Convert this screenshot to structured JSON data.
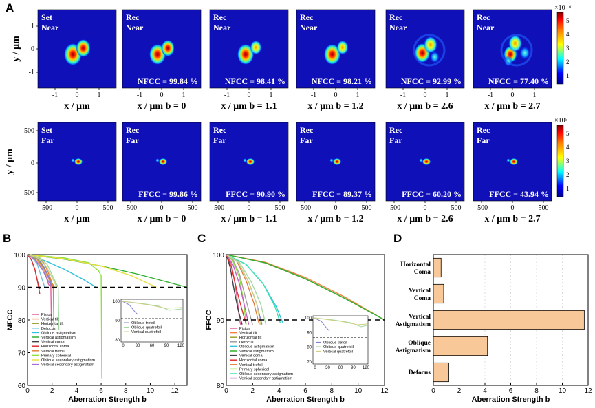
{
  "panel_labels": [
    "A",
    "B",
    "C",
    "D"
  ],
  "panel_a": {
    "near_row": {
      "y_axis_label": "y / μm",
      "y_ticks": [
        "1",
        "0",
        "-1"
      ],
      "x_ticks": [
        "-1",
        "0",
        "1"
      ],
      "colorbar_exponent": "×10⁻⁶",
      "colorbar_ticks": [
        "5",
        "4",
        "3",
        "2",
        "1"
      ],
      "tiles": [
        {
          "line1": "Set",
          "line2": "Near",
          "metric": "",
          "xlabel": "x / μm"
        },
        {
          "line1": "Rec",
          "line2": "Near",
          "metric": "NFCC = 99.84 %",
          "xlabel": "x / μm  b = 0"
        },
        {
          "line1": "Rec",
          "line2": "Near",
          "metric": "NFCC = 98.41 %",
          "xlabel": "x / μm  b = 1.1"
        },
        {
          "line1": "Rec",
          "line2": "Near",
          "metric": "NFCC = 98.21 %",
          "xlabel": "x / μm  b = 1.2"
        },
        {
          "line1": "Rec",
          "line2": "Near",
          "metric": "NFCC = 92.99 %",
          "xlabel": "x / μm  b = 2.6"
        },
        {
          "line1": "Rec",
          "line2": "Near",
          "metric": "NFCC = 77.40 %",
          "xlabel": "x / μm  b = 2.7"
        }
      ]
    },
    "far_row": {
      "y_axis_label": "y / μm",
      "y_ticks": [
        "500",
        "0",
        "-500"
      ],
      "x_ticks": [
        "-500",
        "0",
        "500"
      ],
      "colorbar_exponent": "×10⁵",
      "colorbar_ticks": [
        "5",
        "4",
        "3",
        "2",
        "1"
      ],
      "tiles": [
        {
          "line1": "Set",
          "line2": "Far",
          "metric": "",
          "xlabel": "x / μm"
        },
        {
          "line1": "Rec",
          "line2": "Far",
          "metric": "FFCC = 99.86 %",
          "xlabel": "x / μm  b = 0"
        },
        {
          "line1": "Rec",
          "line2": "Far",
          "metric": "FFCC =  90.90 %",
          "xlabel": "x / μm  b = 1.1"
        },
        {
          "line1": "Rec",
          "line2": "Far",
          "metric": "FFCC =  89.37 %",
          "xlabel": "x / μm  b = 1.2"
        },
        {
          "line1": "Rec",
          "line2": "Far",
          "metric": "FFCC = 60.20 %",
          "xlabel": "x / μm  b = 2.6"
        },
        {
          "line1": "Rec",
          "line2": "Far",
          "metric": "FFCC = 43.94 %",
          "xlabel": "x / μm  b = 2.7"
        }
      ]
    }
  },
  "chart_data": [
    {
      "panel": "B",
      "type": "line",
      "xlabel": "Aberration Strength b",
      "ylabel": "NFCC",
      "xlim": [
        0,
        13
      ],
      "ylim": [
        60,
        100
      ],
      "xticks": [
        "0",
        "2",
        "4",
        "6",
        "8",
        "10",
        "12"
      ],
      "yticks": [
        "100",
        "90",
        "80",
        "70",
        "60"
      ],
      "threshold": 90,
      "series": [
        {
          "name": "Piston",
          "color": "#e0609a",
          "x": [
            0,
            0.6,
            1.0,
            1.3,
            1.5,
            1.7,
            1.9,
            1.95
          ],
          "y": [
            100,
            99.2,
            98.0,
            96.0,
            93.5,
            91.0,
            90.0,
            78
          ]
        },
        {
          "name": "Vertical tilt",
          "color": "#f2a060",
          "x": [
            0,
            0.8,
            1.4,
            1.8,
            2.1
          ],
          "y": [
            100,
            98.0,
            95.0,
            92.0,
            89.5
          ]
        },
        {
          "name": "Horizontal tilt",
          "color": "#a0a030",
          "x": [
            0,
            0.8,
            1.4,
            1.8,
            2.2
          ],
          "y": [
            100,
            98.5,
            95.5,
            92.5,
            90.0
          ]
        },
        {
          "name": "Defocus",
          "color": "#70c0e0",
          "x": [
            0,
            0.4,
            0.8,
            1.1,
            1.4
          ],
          "y": [
            100,
            99.0,
            97.0,
            93.5,
            90.0
          ]
        },
        {
          "name": "Oblique astigmatism",
          "color": "#30c0e0",
          "x": [
            0,
            1.5,
            3.0,
            4.5,
            5.6
          ],
          "y": [
            100,
            98.0,
            95.5,
            92.5,
            90.0
          ]
        },
        {
          "name": "Vertical astigmatism",
          "color": "#30b030",
          "x": [
            0,
            3,
            6,
            9,
            11,
            13
          ],
          "y": [
            100,
            98.6,
            96.5,
            94.0,
            92.0,
            90.0
          ]
        },
        {
          "name": "Vertical coma",
          "color": "#404040",
          "x": [
            0,
            0.3,
            0.6,
            0.8,
            1.0
          ],
          "y": [
            100,
            98.5,
            95.5,
            92.0,
            89.5
          ]
        },
        {
          "name": "Horizontal coma",
          "color": "#e03030",
          "x": [
            0,
            0.3,
            0.6,
            0.8,
            0.9,
            1.0
          ],
          "y": [
            100,
            98.5,
            95.5,
            92.0,
            90.0,
            88
          ]
        },
        {
          "name": "Vertical trefoil",
          "color": "#e08040",
          "x": [
            0,
            1,
            1.4,
            1.8,
            2.1,
            2.15
          ],
          "y": [
            100,
            99.0,
            97.0,
            93.5,
            90.0,
            77
          ]
        },
        {
          "name": "Primary spherical",
          "color": "#90e040",
          "x": [
            0,
            3,
            5,
            5.8,
            6.0,
            6.05
          ],
          "y": [
            100,
            99.0,
            97.5,
            95.0,
            93.5,
            62
          ]
        },
        {
          "name": "Oblique secondary astigmatism",
          "color": "#e8e040",
          "x": [
            0,
            3,
            6,
            8.5,
            10.5
          ],
          "y": [
            100,
            98.7,
            96.5,
            93.5,
            90.0
          ]
        },
        {
          "name": "Vertical secondary astigmatism",
          "color": "#a070d0",
          "x": [
            0,
            0.6,
            1.2,
            1.6,
            2.0
          ],
          "y": [
            100,
            98.5,
            95.5,
            92.5,
            90.0
          ]
        },
        {
          "name": "Oblique trefoil",
          "color": "#8080d0",
          "x": [
            0,
            0.8,
            1.3,
            1.7,
            2.0
          ],
          "y": [
            100,
            99.0,
            96.5,
            93.5,
            90.0
          ]
        },
        {
          "name": "Oblique quatrefoil",
          "color": "#a0d8a0",
          "x": [
            0,
            1,
            1.6,
            2.1,
            2.5,
            2.55
          ],
          "y": [
            100,
            99.0,
            97.0,
            93.0,
            90.0,
            77
          ]
        },
        {
          "name": "Vertical quatrefoil",
          "color": "#d0d080",
          "x": [
            0,
            0.8,
            1.5,
            2.0,
            2.4
          ],
          "y": [
            100,
            99.0,
            96.5,
            93.0,
            90.0
          ]
        }
      ],
      "legend_labels": [
        "Piston",
        "Vertical tilt",
        "Horizontal tilt",
        "Defocus",
        "Oblique astigmatism",
        "Vertical astigmatism",
        "Vertical coma",
        "Horizontal coma",
        "Vertical trefoil",
        "Primary spherical",
        "Oblique secondary astigmatism",
        "Vertical secondary astigmatism"
      ],
      "inset": {
        "yticks": [
          "100",
          "90",
          "80"
        ],
        "xticks": [
          "0",
          "30",
          "60",
          "90",
          "120"
        ],
        "legend_labels": [
          "Oblique trefoil",
          "Oblique quatrefoil",
          "Vertical quatrefoil"
        ]
      }
    },
    {
      "panel": "C",
      "type": "line",
      "xlabel": "Aberration Strength b",
      "ylabel": "FFCC",
      "xlim": [
        0,
        12
      ],
      "ylim": [
        80,
        100
      ],
      "xticks": [
        "0",
        "2",
        "4",
        "6",
        "8",
        "10",
        "12"
      ],
      "yticks": [
        "100",
        "90",
        "80"
      ],
      "threshold": 90,
      "series": [
        {
          "name": "Piston",
          "color": "#e0609a",
          "x": [
            0,
            0.4,
            0.7,
            0.9,
            1.0,
            1.1
          ],
          "y": [
            100,
            98.5,
            95.0,
            92.0,
            90.0,
            89.2
          ]
        },
        {
          "name": "Vertical tilt",
          "color": "#f28040",
          "x": [
            0,
            3,
            6,
            9,
            12
          ],
          "y": [
            100,
            98.8,
            96.5,
            93.5,
            90.0
          ]
        },
        {
          "name": "Horizontal tilt",
          "color": "#a0a030",
          "x": [
            0,
            3,
            6,
            9,
            12
          ],
          "y": [
            100,
            98.7,
            96.3,
            93.3,
            90.0
          ]
        },
        {
          "name": "Defocus",
          "color": "#a0a0a0",
          "x": [
            0,
            0.5,
            1.0,
            1.5,
            1.9,
            2.0
          ],
          "y": [
            100,
            99.2,
            97.0,
            93.0,
            90.0,
            89.2
          ]
        },
        {
          "name": "Oblique astigmatism",
          "color": "#30c0e0",
          "x": [
            0,
            1.5,
            2.8,
            3.8,
            4.3
          ],
          "y": [
            100,
            98.5,
            95.5,
            92.0,
            89.5
          ]
        },
        {
          "name": "Vertical astigmatism",
          "color": "#30b030",
          "x": [
            0,
            3,
            6,
            9,
            12
          ],
          "y": [
            100,
            98.7,
            96.3,
            93.3,
            90.0
          ]
        },
        {
          "name": "Vertical coma",
          "color": "#404040",
          "x": [
            0,
            0.3,
            0.6,
            0.9,
            1.2
          ],
          "y": [
            100,
            98.0,
            94.5,
            91.5,
            89.3
          ]
        },
        {
          "name": "Horizontal coma",
          "color": "#e03030",
          "x": [
            0,
            0.4,
            0.8,
            1.2,
            1.5
          ],
          "y": [
            100,
            98.0,
            94.5,
            91.5,
            89.3
          ]
        },
        {
          "name": "Vertical trefoil",
          "color": "#e08040",
          "x": [
            0,
            0.8,
            1.5,
            2.1,
            2.5
          ],
          "y": [
            100,
            99.0,
            96.0,
            92.5,
            89.3
          ]
        },
        {
          "name": "Primary spherical",
          "color": "#90e040",
          "x": [
            0,
            0.5,
            1.0,
            1.3,
            1.5
          ],
          "y": [
            100,
            99.0,
            96.5,
            93.0,
            89.3
          ]
        },
        {
          "name": "Oblique secondary astigmatism",
          "color": "#40e0b0",
          "x": [
            0,
            1.5,
            2.8,
            3.7,
            4.1
          ],
          "y": [
            100,
            98.5,
            95.5,
            92.0,
            89.5
          ]
        },
        {
          "name": "Vertical secondary astigmatism",
          "color": "#c060c0",
          "x": [
            0,
            0.5,
            1.0,
            1.4,
            1.7
          ],
          "y": [
            100,
            98.5,
            95.5,
            92.0,
            89.3
          ]
        },
        {
          "name": "Oblique trefoil",
          "color": "#8080d0",
          "x": [
            0,
            0.9,
            1.7,
            2.3,
            2.7
          ],
          "y": [
            100,
            98.8,
            95.8,
            92.5,
            89.3
          ]
        },
        {
          "name": "Oblique quatrefoil",
          "color": "#a0d8a0",
          "x": [
            0,
            1,
            1.9,
            2.6,
            3.0
          ],
          "y": [
            100,
            98.8,
            95.8,
            92.5,
            89.3
          ]
        },
        {
          "name": "Vertical quatrefoil",
          "color": "#d0d080",
          "x": [
            0,
            0.9,
            1.7,
            2.3,
            2.6
          ],
          "y": [
            100,
            98.8,
            95.8,
            92.5,
            89.3
          ]
        }
      ],
      "legend_labels": [
        "Piston",
        "Vertical tilt",
        "Horizontal tilt",
        "Defocus",
        "Oblique astigmatism",
        "Vertical astigmatism",
        "Vertical coma",
        "Horizontal coma",
        "Vertical trefoil",
        "Primary spherical",
        "Oblique secondary astigmatism",
        "Vertical secondary astigmatism"
      ],
      "inset": {
        "yticks": [
          "100",
          "90",
          "80",
          "70"
        ],
        "xticks": [
          "0",
          "30",
          "60",
          "90",
          "120"
        ],
        "legend_labels": [
          "Oblique trefoil",
          "Oblique quatrefoil",
          "Vertical quatrefoil"
        ]
      }
    },
    {
      "panel": "D",
      "type": "bar",
      "orientation": "horizontal",
      "xlabel": "Aberration Strength b",
      "xlim": [
        0,
        12
      ],
      "xticks": [
        "0",
        "2",
        "4",
        "6",
        "8",
        "10",
        "12"
      ],
      "categories": [
        "Horizontal Coma",
        "Vertical Coma",
        "Vertical Astigmatism",
        "Oblique Astigmatism",
        "Defocus"
      ],
      "values": [
        0.6,
        0.8,
        11.7,
        4.2,
        1.2
      ],
      "bar_color": "#f8c898"
    }
  ]
}
